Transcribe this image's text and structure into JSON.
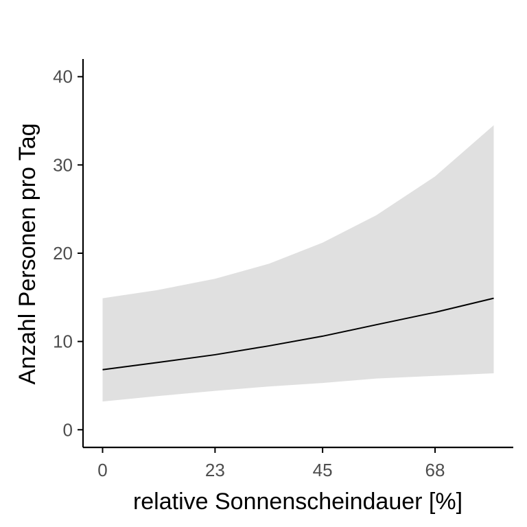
{
  "chart_data": {
    "type": "line",
    "title": "",
    "xlabel": "relative Sonnenscheindauer [%]",
    "ylabel": "Anzahl Personen pro Tag",
    "xlim": [
      -4,
      84
    ],
    "ylim": [
      -2,
      42
    ],
    "x_ticks": [
      0,
      23,
      45,
      68
    ],
    "y_ticks": [
      0,
      10,
      20,
      30,
      40
    ],
    "grid": false,
    "legend": "none",
    "series": [
      {
        "x": [
          0,
          11,
          23,
          34,
          45,
          56,
          68,
          80
        ],
        "values": [
          6.8,
          7.6,
          8.5,
          9.5,
          10.6,
          11.9,
          13.3,
          14.9
        ],
        "lower": [
          3.2,
          3.8,
          4.4,
          4.9,
          5.3,
          5.8,
          6.1,
          6.4
        ],
        "upper": [
          14.9,
          15.8,
          17.1,
          18.8,
          21.2,
          24.3,
          28.7,
          34.5
        ]
      }
    ],
    "colors": {
      "line": "#000000",
      "ribbon": "#e0e0e0",
      "axis": "#000000",
      "tick_label": "#4d4d4d"
    }
  }
}
